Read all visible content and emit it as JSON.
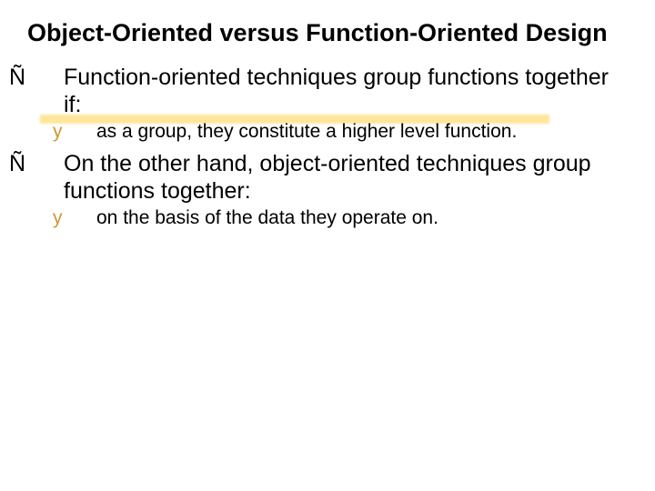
{
  "title_fontsize": 27,
  "main_bullet_fontsize": 25,
  "sub_bullet_fontsize": 21,
  "title_color": "#000000",
  "main_bullet_marker_color": "#000000",
  "sub_bullet_marker_color": "#cc9933",
  "highlight_color": "#ffe28a",
  "background_color": "#ffffff",
  "title": "Object-Oriented versus Function-Oriented  Design",
  "bullets": [
    {
      "marker": "Ñ",
      "text": "Function-oriented techniques group functions together if:",
      "sub": [
        {
          "marker": "y",
          "text": "as a group, they constitute a higher level function."
        }
      ]
    },
    {
      "marker": "Ñ",
      "text": "On the other hand, object-oriented techniques group functions together:",
      "sub": [
        {
          "marker": "y",
          "text": "on the basis of the data they operate on."
        }
      ]
    }
  ]
}
